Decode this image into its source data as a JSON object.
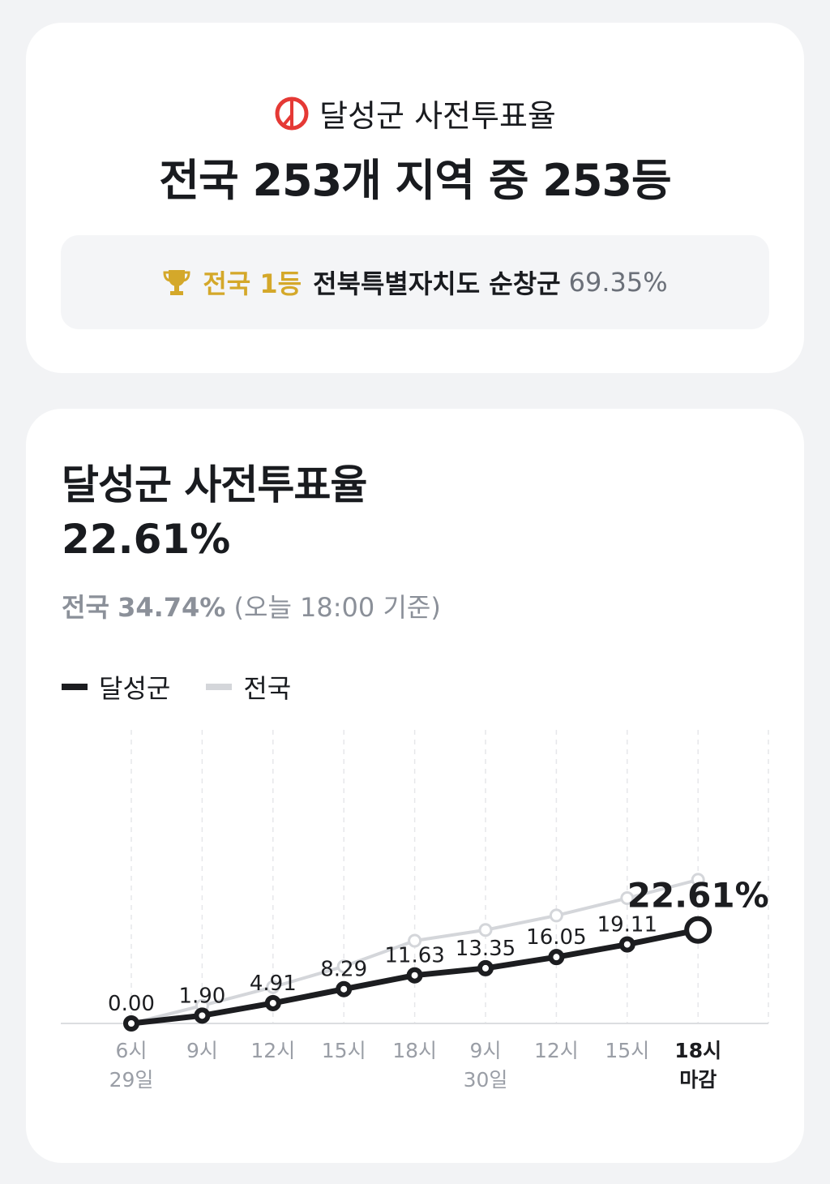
{
  "summary": {
    "icon": "vote-stamp-icon",
    "title": "달성군 사전투표율",
    "rank_text": "전국 253개 지역 중 253등",
    "top": {
      "icon": "trophy-icon",
      "label": "전국 1등",
      "region": "전북특별자치도 순창군",
      "rate": "69.35%"
    }
  },
  "detail": {
    "title": "달성군 사전투표율",
    "rate": "22.61%",
    "national_label": "전국",
    "national_rate": "34.74%",
    "basis": "(오늘 18:00 기준)"
  },
  "colors": {
    "local": "#1c1d20",
    "national": "#d4d6da",
    "accent_red": "#e53935",
    "gold": "#d4a82a"
  },
  "chart_data": {
    "type": "line",
    "legend": [
      {
        "name": "달성군"
      },
      {
        "name": "전국"
      }
    ],
    "legend_placement": "top-left",
    "categories": [
      [
        "6시",
        "29일"
      ],
      [
        "9시",
        ""
      ],
      [
        "12시",
        ""
      ],
      [
        "15시",
        ""
      ],
      [
        "18시",
        ""
      ],
      [
        "9시",
        "30일"
      ],
      [
        "12시",
        ""
      ],
      [
        "15시",
        ""
      ],
      [
        "18시",
        "마감"
      ]
    ],
    "series": [
      {
        "name": "달성군",
        "values": [
          0.0,
          1.9,
          4.91,
          8.29,
          11.63,
          13.35,
          16.05,
          19.11,
          22.61
        ],
        "labels": [
          "0.00",
          "1.90",
          "4.91",
          "8.29",
          "11.63",
          "13.35",
          "16.05",
          "19.11",
          "22.61%"
        ]
      },
      {
        "name": "전국",
        "values": [
          0,
          4.3,
          8.8,
          13.8,
          20.0,
          22.6,
          26.1,
          30.3,
          34.74
        ]
      }
    ],
    "ylim": [
      0,
      71
    ],
    "grid": "vertical dashed"
  }
}
